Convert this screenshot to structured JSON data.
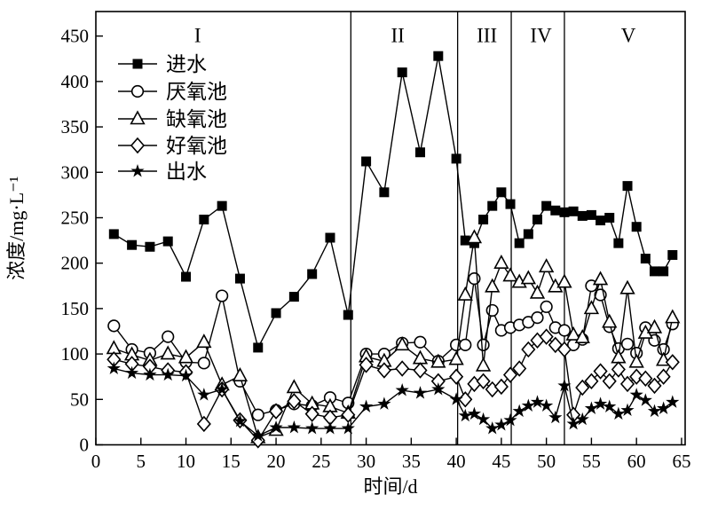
{
  "chart_data": {
    "type": "line",
    "title": "",
    "xlabel": "时间/d",
    "ylabel": "浓度/mg·L⁻¹",
    "xlim": [
      0,
      65.4
    ],
    "ylim": [
      0,
      477
    ],
    "xticks": [
      0,
      5,
      10,
      15,
      20,
      25,
      30,
      35,
      40,
      45,
      50,
      55,
      60,
      65
    ],
    "yticks": [
      0,
      50,
      100,
      150,
      200,
      250,
      300,
      350,
      400,
      450
    ],
    "grid": false,
    "legend_position": "upper-left-inside",
    "phase_dividers_x": [
      28.3,
      40.15,
      46.1,
      52.0
    ],
    "phase_labels": [
      {
        "text": "I",
        "x": 11.3,
        "y": 451
      },
      {
        "text": "II",
        "x": 33.5,
        "y": 451
      },
      {
        "text": "III",
        "x": 43.4,
        "y": 451
      },
      {
        "text": "IV",
        "x": 49.4,
        "y": 451
      },
      {
        "text": "V",
        "x": 59.1,
        "y": 451
      }
    ],
    "x": [
      2,
      4,
      6,
      8,
      10,
      12,
      14,
      16,
      18,
      20,
      22,
      24,
      26,
      28,
      30,
      32,
      34,
      36,
      38,
      40,
      41,
      42,
      43,
      44,
      45,
      46,
      47,
      48,
      49,
      50,
      51,
      52,
      53,
      54,
      55,
      56,
      57,
      58,
      59,
      60,
      61,
      62,
      63,
      64
    ],
    "series": [
      {
        "name": "进水",
        "key": "influent",
        "marker": "square-filled",
        "color": "#000000",
        "y": [
          232,
          220,
          218,
          224,
          185,
          248,
          263,
          183,
          107,
          145,
          163,
          188,
          228,
          143,
          312,
          278,
          410,
          322,
          428,
          315,
          225,
          222,
          248,
          263,
          278,
          265,
          222,
          232,
          248,
          263,
          258,
          256,
          257,
          252,
          253,
          247,
          250,
          222,
          285,
          240,
          205,
          191,
          191,
          209
        ]
      },
      {
        "name": "厌氧池",
        "key": "anaerobic-tank",
        "marker": "circle-open",
        "color": "#000000",
        "y": [
          131,
          105,
          101,
          119,
          91,
          90,
          164,
          70,
          33,
          38,
          45,
          43,
          52,
          46,
          100,
          100,
          112,
          113,
          92,
          110,
          110,
          183,
          110,
          148,
          126,
          129,
          132,
          135,
          140,
          152,
          129,
          126,
          110,
          116,
          175,
          165,
          130,
          106,
          111,
          101,
          129,
          115,
          105,
          133
        ]
      },
      {
        "name": "缺氧池",
        "key": "anoxic-tank",
        "marker": "triangle-open",
        "color": "#000000",
        "y": [
          106,
          99,
          93,
          100,
          96,
          113,
          66,
          76,
          8,
          16,
          63,
          45,
          42,
          35,
          97,
          92,
          110,
          95,
          91,
          94,
          165,
          228,
          87,
          174,
          200,
          186,
          179,
          183,
          167,
          196,
          174,
          179,
          121,
          118,
          150,
          182,
          135,
          96,
          172,
          91,
          123,
          129,
          93,
          140
        ]
      },
      {
        "name": "好氧池",
        "key": "aerobic-tank",
        "marker": "diamond-open",
        "color": "#000000",
        "y": [
          94,
          89,
          86,
          82,
          80,
          23,
          61,
          27,
          5,
          37,
          48,
          34,
          30,
          33,
          88,
          82,
          84,
          82,
          70,
          75,
          50,
          67,
          70,
          61,
          64,
          77,
          84,
          105,
          115,
          119,
          110,
          105,
          33,
          63,
          70,
          81,
          70,
          83,
          67,
          75,
          73,
          65,
          75,
          91
        ]
      },
      {
        "name": "出水",
        "key": "effluent",
        "marker": "star-filled",
        "color": "#000000",
        "y": [
          84,
          79,
          77,
          77,
          76,
          55,
          61,
          26,
          10,
          19,
          19,
          18,
          18,
          18,
          42,
          45,
          60,
          57,
          61,
          50,
          32,
          34,
          28,
          18,
          22,
          27,
          37,
          43,
          47,
          43,
          30,
          65,
          23,
          28,
          40,
          45,
          42,
          34,
          38,
          55,
          49,
          37,
          40,
          47
        ]
      }
    ]
  }
}
